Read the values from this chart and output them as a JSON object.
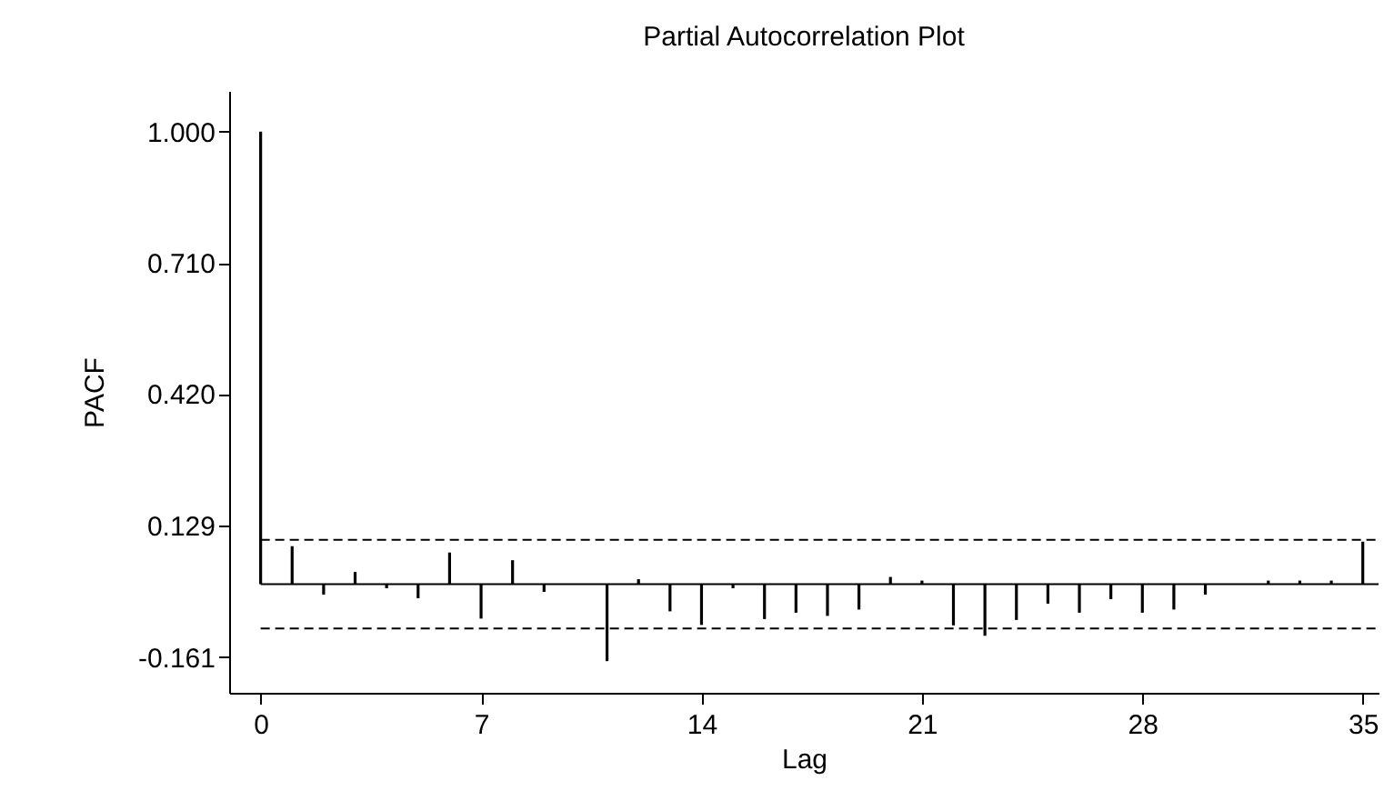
{
  "chart_data": {
    "type": "bar",
    "title": "Partial Autocorrelation Plot",
    "xlabel": "Lag",
    "ylabel": "PACF",
    "x": [
      0,
      1,
      2,
      3,
      4,
      5,
      6,
      7,
      8,
      9,
      10,
      11,
      12,
      13,
      14,
      15,
      16,
      17,
      18,
      19,
      20,
      21,
      22,
      23,
      24,
      25,
      26,
      27,
      28,
      29,
      30,
      31,
      32,
      33,
      34,
      35
    ],
    "values": [
      1,
      0.084,
      -0.023,
      0.027,
      -0.009,
      -0.031,
      0.07,
      -0.076,
      0.053,
      -0.017,
      0,
      -0.17,
      0.011,
      -0.06,
      -0.09,
      -0.009,
      -0.077,
      -0.063,
      -0.07,
      -0.056,
      0.016,
      0.008,
      -0.091,
      -0.114,
      -0.079,
      -0.043,
      -0.063,
      -0.033,
      -0.063,
      -0.056,
      -0.023,
      0,
      0.008,
      0.008,
      0.008,
      0.094
    ],
    "color": "#000000",
    "xlim": [
      -1,
      35.5
    ],
    "xticks": [
      0,
      7,
      14,
      21,
      28,
      35
    ],
    "ylim": [
      -0.24,
      1.09
    ],
    "yticks": [
      {
        "value": 1,
        "label": "1.000"
      },
      {
        "value": 0.71,
        "label": "0.710"
      },
      {
        "value": 0.42,
        "label": "0.420"
      },
      {
        "value": 0.129,
        "label": "0.129"
      },
      {
        "value": -0.161,
        "label": "-0.161"
      }
    ],
    "ref_lines": [
      {
        "axis": "y",
        "value": 0,
        "line_style": "solid"
      },
      {
        "axis": "y",
        "value": 0.098,
        "line_style": "dashed"
      },
      {
        "axis": "y",
        "value": -0.098,
        "line_style": "dashed"
      }
    ],
    "grid": false
  }
}
